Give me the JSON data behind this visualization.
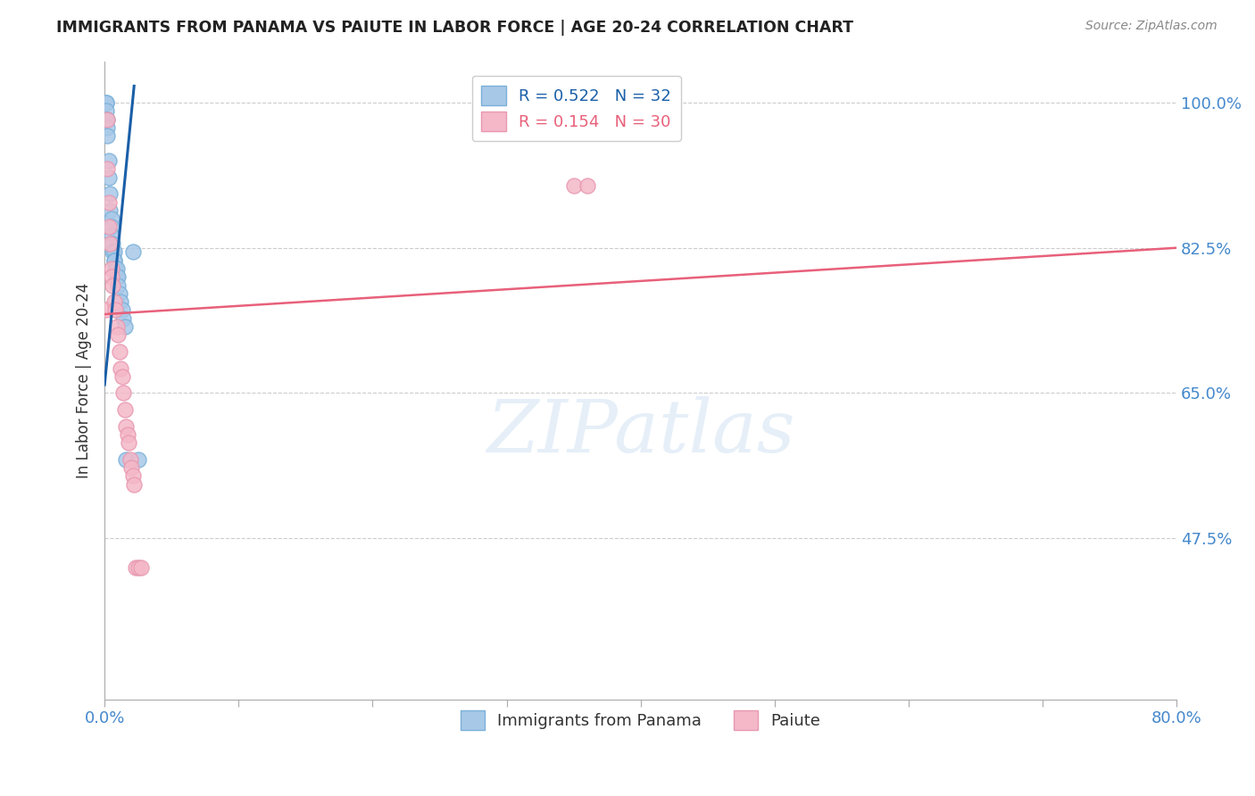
{
  "title": "IMMIGRANTS FROM PANAMA VS PAIUTE IN LABOR FORCE | AGE 20-24 CORRELATION CHART",
  "source": "Source: ZipAtlas.com",
  "ylabel": "In Labor Force | Age 20-24",
  "watermark": "ZIPatlas",
  "blue_color": "#a8c8e8",
  "pink_color": "#f4b8c8",
  "blue_edge_color": "#7ab0d8",
  "pink_edge_color": "#e898b0",
  "blue_line_color": "#1a5fa8",
  "pink_line_color": "#e8607a",
  "ytick_color": "#4488cc",
  "xtick_color": "#4488cc",
  "xmin": 0.0,
  "xmax": 0.8,
  "ymin": 0.28,
  "ymax": 1.05,
  "yticks": [
    0.475,
    0.65,
    0.825,
    1.0
  ],
  "ytick_labels": [
    "47.5%",
    "65.0%",
    "82.5%",
    "100.0%"
  ],
  "panama_x": [
    0.001,
    0.001,
    0.001,
    0.001,
    0.002,
    0.002,
    0.002,
    0.003,
    0.003,
    0.004,
    0.004,
    0.005,
    0.005,
    0.005,
    0.006,
    0.006,
    0.007,
    0.007,
    0.007,
    0.008,
    0.009,
    0.009,
    0.01,
    0.01,
    0.011,
    0.012,
    0.013,
    0.014,
    0.015,
    0.016,
    0.021,
    0.025
  ],
  "panama_y": [
    1.0,
    1.0,
    0.99,
    0.98,
    0.98,
    0.97,
    0.96,
    0.93,
    0.91,
    0.89,
    0.87,
    0.86,
    0.85,
    0.84,
    0.83,
    0.82,
    0.82,
    0.81,
    0.81,
    0.8,
    0.8,
    0.79,
    0.79,
    0.78,
    0.77,
    0.76,
    0.75,
    0.74,
    0.73,
    0.57,
    0.82,
    0.57
  ],
  "paiute_x": [
    0.001,
    0.002,
    0.002,
    0.003,
    0.003,
    0.004,
    0.005,
    0.005,
    0.006,
    0.007,
    0.008,
    0.009,
    0.01,
    0.011,
    0.012,
    0.013,
    0.014,
    0.015,
    0.016,
    0.017,
    0.018,
    0.019,
    0.02,
    0.021,
    0.022,
    0.023,
    0.025,
    0.027,
    0.35,
    0.36
  ],
  "paiute_y": [
    0.75,
    0.98,
    0.92,
    0.88,
    0.85,
    0.83,
    0.8,
    0.79,
    0.78,
    0.76,
    0.75,
    0.73,
    0.72,
    0.7,
    0.68,
    0.67,
    0.65,
    0.63,
    0.61,
    0.6,
    0.59,
    0.57,
    0.56,
    0.55,
    0.54,
    0.44,
    0.44,
    0.44,
    0.9,
    0.9
  ],
  "blue_trend_x": [
    0.0,
    0.022
  ],
  "blue_trend_y": [
    0.66,
    1.02
  ],
  "pink_trend_x": [
    0.0,
    0.8
  ],
  "pink_trend_y": [
    0.745,
    0.825
  ],
  "legend1_R": "R = 0.522",
  "legend1_N": "N = 32",
  "legend2_R": "R = 0.154",
  "legend2_N": "N = 30",
  "legend_bottom": [
    "Immigrants from Panama",
    "Paiute"
  ]
}
